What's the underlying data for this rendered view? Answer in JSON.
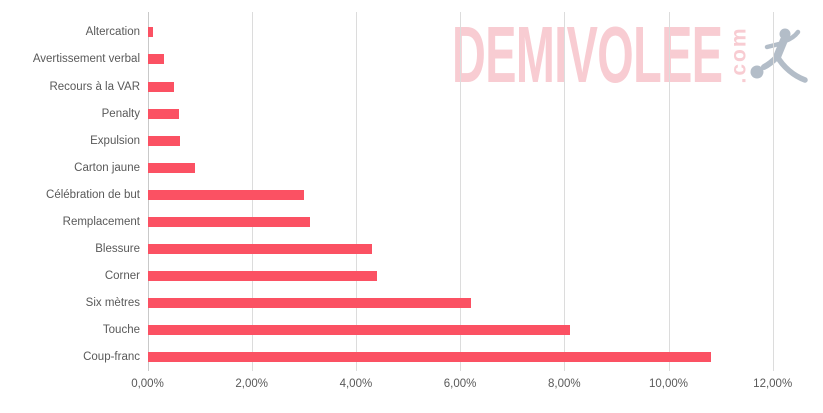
{
  "watermark": {
    "brand": "DEMIVOLEE",
    "suffix": ".com",
    "brand_color": "#f8ccd2",
    "player_color": "#b3bdc8"
  },
  "chart_data": {
    "type": "bar",
    "orientation": "horizontal",
    "title": "",
    "xlabel": "",
    "ylabel": "",
    "categories": [
      "Altercation",
      "Avertissement verbal",
      "Recours à la VAR",
      "Penalty",
      "Expulsion",
      "Carton jaune",
      "Célébration de but",
      "Remplacement",
      "Blessure",
      "Corner",
      "Six mètres",
      "Touche",
      "Coup-franc"
    ],
    "values": [
      0.1,
      0.3,
      0.5,
      0.6,
      0.62,
      0.9,
      3.0,
      3.1,
      4.3,
      4.4,
      6.2,
      8.1,
      10.8
    ],
    "value_unit": "%",
    "xlim": [
      0,
      12
    ],
    "x_ticks": [
      0,
      2,
      4,
      6,
      8,
      10,
      12
    ],
    "x_tick_labels": [
      "0,00%",
      "2,00%",
      "4,00%",
      "6,00%",
      "8,00%",
      "10,00%",
      "12,00%"
    ],
    "grid": true,
    "legend": false,
    "bar_color": "#fb5163",
    "gridline_color": "#dcdcdc",
    "axis_line_color": "#c9c9c9",
    "label_color": "#595959"
  }
}
